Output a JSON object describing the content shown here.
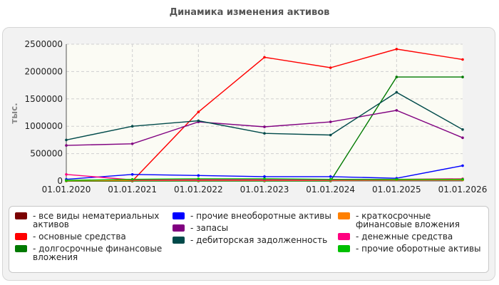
{
  "chart_data": {
    "type": "line",
    "title": "Динамика изменения активов",
    "ylabel": "тыс.",
    "xlabel": "",
    "x": [
      "01.01.2020",
      "01.01.2021",
      "01.01.2022",
      "01.01.2023",
      "01.01.2024",
      "01.01.2025",
      "01.01.2026"
    ],
    "yticks": [
      "0",
      "500000",
      "1000000",
      "1500000",
      "2000000",
      "2500000"
    ],
    "ylim": [
      0,
      2500000
    ],
    "grid": true,
    "legend_position": "bottom",
    "series": [
      {
        "name": "все виды нематериальных активов",
        "color": "#7a0000",
        "values": [
          10000,
          15000,
          20000,
          20000,
          20000,
          20000,
          20000
        ]
      },
      {
        "name": "основные средства",
        "color": "#ff0000",
        "values": [
          0,
          0,
          1260000,
          2260000,
          2070000,
          2410000,
          2220000
        ]
      },
      {
        "name": "долгосрочные финансовые вложения",
        "color": "#007a00",
        "values": [
          0,
          0,
          0,
          0,
          0,
          1900000,
          1900000
        ]
      },
      {
        "name": "прочие внеоборотные активы",
        "color": "#0000ff",
        "values": [
          30000,
          120000,
          100000,
          80000,
          80000,
          50000,
          280000
        ]
      },
      {
        "name": "запасы",
        "color": "#800080",
        "values": [
          650000,
          680000,
          1080000,
          990000,
          1080000,
          1290000,
          790000
        ]
      },
      {
        "name": "дебиторская задолженность",
        "color": "#004a4a",
        "values": [
          750000,
          1000000,
          1100000,
          870000,
          840000,
          1620000,
          940000
        ]
      },
      {
        "name": "краткосрочные финансовые вложения",
        "color": "#ff8000",
        "values": [
          5000,
          10000,
          10000,
          10000,
          10000,
          20000,
          20000
        ]
      },
      {
        "name": "денежные средства",
        "color": "#ff0080",
        "values": [
          120000,
          20000,
          20000,
          20000,
          20000,
          30000,
          40000
        ]
      },
      {
        "name": "прочие оборотные активы",
        "color": "#00c000",
        "values": [
          10000,
          30000,
          40000,
          40000,
          30000,
          30000,
          30000
        ]
      }
    ]
  }
}
